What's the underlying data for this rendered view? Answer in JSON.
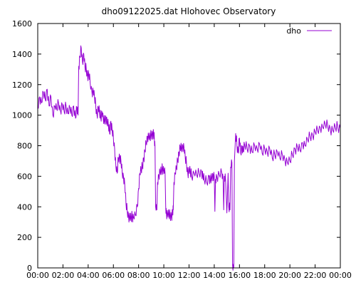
{
  "chart_data": {
    "type": "line",
    "title": "dho09122025.dat Hlohovec Observatory",
    "xlabel": "",
    "ylabel": "",
    "xlim": [
      0,
      24
    ],
    "ylim": [
      0,
      1600
    ],
    "x_ticks": [
      "00:00",
      "02:00",
      "04:00",
      "06:00",
      "08:00",
      "10:00",
      "12:00",
      "14:00",
      "16:00",
      "18:00",
      "20:00",
      "22:00",
      "00:00"
    ],
    "y_ticks": [
      0,
      200,
      400,
      600,
      800,
      1000,
      1200,
      1400,
      1600
    ],
    "grid": false,
    "legend_position": "top-right",
    "series": [
      {
        "name": "dho",
        "color": "#9400d3",
        "points": [
          [
            0.0,
            1050
          ],
          [
            0.15,
            1120
          ],
          [
            0.3,
            1080
          ],
          [
            0.45,
            1150
          ],
          [
            0.6,
            1100
          ],
          [
            0.75,
            1170
          ],
          [
            0.9,
            1060
          ],
          [
            1.05,
            1120
          ],
          [
            1.2,
            1000
          ],
          [
            1.35,
            1060
          ],
          [
            1.5,
            1040
          ],
          [
            1.65,
            1080
          ],
          [
            1.8,
            1030
          ],
          [
            1.95,
            1070
          ],
          [
            2.1,
            1020
          ],
          [
            2.25,
            1060
          ],
          [
            2.4,
            1010
          ],
          [
            2.55,
            1050
          ],
          [
            2.7,
            1000
          ],
          [
            2.85,
            1060
          ],
          [
            3.0,
            980
          ],
          [
            3.1,
            1050
          ],
          [
            3.2,
            1000
          ],
          [
            3.25,
            1320
          ],
          [
            3.35,
            1380
          ],
          [
            3.45,
            1440
          ],
          [
            3.55,
            1350
          ],
          [
            3.65,
            1400
          ],
          [
            3.75,
            1310
          ],
          [
            3.85,
            1300
          ],
          [
            3.95,
            1260
          ],
          [
            4.05,
            1270
          ],
          [
            4.15,
            1220
          ],
          [
            4.3,
            1150
          ],
          [
            4.4,
            1160
          ],
          [
            4.5,
            1120
          ],
          [
            4.6,
            1060
          ],
          [
            4.7,
            1000
          ],
          [
            4.8,
            1050
          ],
          [
            4.9,
            1020
          ],
          [
            5.0,
            980
          ],
          [
            5.1,
            1020
          ],
          [
            5.2,
            970
          ],
          [
            5.3,
            960
          ],
          [
            5.4,
            990
          ],
          [
            5.5,
            950
          ],
          [
            5.6,
            940
          ],
          [
            5.7,
            880
          ],
          [
            5.8,
            960
          ],
          [
            5.9,
            900
          ],
          [
            6.0,
            850
          ],
          [
            6.1,
            780
          ],
          [
            6.2,
            660
          ],
          [
            6.3,
            620
          ],
          [
            6.4,
            720
          ],
          [
            6.5,
            730
          ],
          [
            6.6,
            700
          ],
          [
            6.7,
            620
          ],
          [
            6.8,
            600
          ],
          [
            6.9,
            550
          ],
          [
            7.0,
            420
          ],
          [
            7.1,
            370
          ],
          [
            7.2,
            340
          ],
          [
            7.3,
            330
          ],
          [
            7.4,
            325
          ],
          [
            7.5,
            335
          ],
          [
            7.6,
            330
          ],
          [
            7.75,
            345
          ],
          [
            7.9,
            400
          ],
          [
            8.0,
            520
          ],
          [
            8.1,
            620
          ],
          [
            8.2,
            640
          ],
          [
            8.3,
            660
          ],
          [
            8.4,
            720
          ],
          [
            8.5,
            760
          ],
          [
            8.6,
            820
          ],
          [
            8.7,
            860
          ],
          [
            8.8,
            860
          ],
          [
            8.9,
            850
          ],
          [
            9.0,
            870
          ],
          [
            9.1,
            880
          ],
          [
            9.2,
            880
          ],
          [
            9.25,
            840
          ],
          [
            9.3,
            800
          ],
          [
            9.35,
            400
          ],
          [
            9.45,
            380
          ],
          [
            9.5,
            560
          ],
          [
            9.6,
            610
          ],
          [
            9.7,
            630
          ],
          [
            9.8,
            630
          ],
          [
            9.9,
            650
          ],
          [
            10.0,
            640
          ],
          [
            10.1,
            620
          ],
          [
            10.15,
            400
          ],
          [
            10.2,
            360
          ],
          [
            10.3,
            350
          ],
          [
            10.4,
            350
          ],
          [
            10.5,
            340
          ],
          [
            10.6,
            345
          ],
          [
            10.7,
            360
          ],
          [
            10.75,
            380
          ],
          [
            10.8,
            560
          ],
          [
            10.9,
            620
          ],
          [
            11.0,
            650
          ],
          [
            11.1,
            700
          ],
          [
            11.2,
            760
          ],
          [
            11.3,
            790
          ],
          [
            11.4,
            780
          ],
          [
            11.5,
            800
          ],
          [
            11.6,
            790
          ],
          [
            11.7,
            720
          ],
          [
            11.8,
            680
          ],
          [
            11.9,
            620
          ],
          [
            12.0,
            640
          ],
          [
            12.1,
            630
          ],
          [
            12.2,
            600
          ],
          [
            12.4,
            620
          ],
          [
            12.6,
            610
          ],
          [
            12.8,
            620
          ],
          [
            13.0,
            630
          ],
          [
            13.1,
            600
          ],
          [
            13.2,
            580
          ],
          [
            13.4,
            560
          ],
          [
            13.6,
            600
          ],
          [
            13.7,
            570
          ],
          [
            13.8,
            590
          ],
          [
            13.9,
            610
          ],
          [
            14.0,
            600
          ],
          [
            14.05,
            370
          ],
          [
            14.1,
            580
          ],
          [
            14.2,
            600
          ],
          [
            14.4,
            610
          ],
          [
            14.6,
            620
          ],
          [
            14.7,
            590
          ],
          [
            14.75,
            380
          ],
          [
            14.8,
            600
          ],
          [
            14.9,
            570
          ],
          [
            15.0,
            360
          ],
          [
            15.1,
            620
          ],
          [
            15.15,
            400
          ],
          [
            15.25,
            380
          ],
          [
            15.3,
            660
          ],
          [
            15.4,
            690
          ],
          [
            15.45,
            20
          ],
          [
            15.55,
            0
          ],
          [
            15.6,
            700
          ],
          [
            15.7,
            880
          ],
          [
            15.8,
            800
          ],
          [
            15.9,
            760
          ],
          [
            16.0,
            850
          ],
          [
            16.1,
            750
          ],
          [
            16.2,
            800
          ],
          [
            16.3,
            760
          ],
          [
            16.4,
            810
          ],
          [
            16.6,
            780
          ],
          [
            16.8,
            800
          ],
          [
            17.0,
            760
          ],
          [
            17.2,
            800
          ],
          [
            17.4,
            780
          ],
          [
            17.6,
            810
          ],
          [
            17.8,
            750
          ],
          [
            18.0,
            780
          ],
          [
            18.2,
            760
          ],
          [
            18.4,
            780
          ],
          [
            18.6,
            720
          ],
          [
            18.8,
            740
          ],
          [
            19.0,
            760
          ],
          [
            19.2,
            720
          ],
          [
            19.4,
            740
          ],
          [
            19.6,
            710
          ],
          [
            19.8,
            690
          ],
          [
            20.0,
            700
          ],
          [
            20.2,
            740
          ],
          [
            20.4,
            780
          ],
          [
            20.6,
            790
          ],
          [
            20.8,
            770
          ],
          [
            21.0,
            820
          ],
          [
            21.2,
            800
          ],
          [
            21.4,
            840
          ],
          [
            21.6,
            860
          ],
          [
            21.8,
            870
          ],
          [
            22.0,
            890
          ],
          [
            22.2,
            900
          ],
          [
            22.4,
            920
          ],
          [
            22.6,
            920
          ],
          [
            22.8,
            940
          ],
          [
            23.0,
            930
          ],
          [
            23.2,
            910
          ],
          [
            23.4,
            900
          ],
          [
            23.6,
            920
          ],
          [
            23.8,
            920
          ],
          [
            24.0,
            915
          ]
        ]
      }
    ]
  }
}
